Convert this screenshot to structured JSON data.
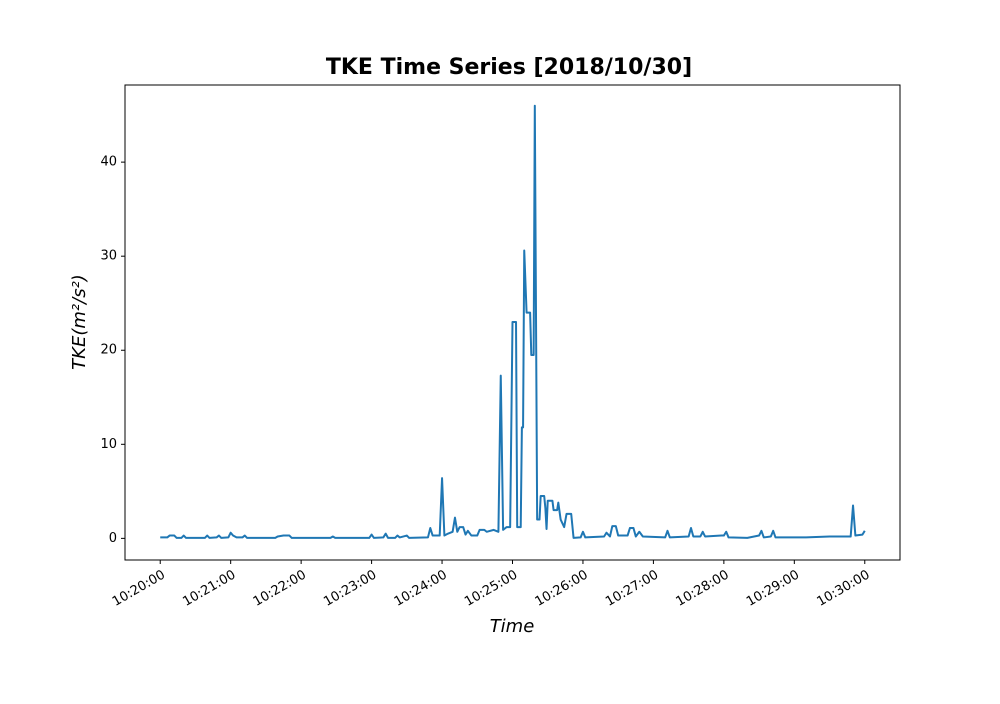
{
  "chart_data": {
    "type": "line",
    "title": "TKE Time Series [2018/10/30]",
    "xlabel": "Time",
    "ylabel": "TKE(m²/s²)",
    "ylabel_color": "#1f77b4",
    "color": "#1f77b4",
    "x": [
      "10:20:00",
      "10:20:06",
      "10:20:08",
      "10:20:12",
      "10:20:14",
      "10:20:18",
      "10:20:20",
      "10:20:22",
      "10:20:38",
      "10:20:40",
      "10:20:42",
      "10:20:48",
      "10:20:50",
      "10:20:52",
      "10:20:58",
      "10:21:00",
      "10:21:02",
      "10:21:05",
      "10:21:10",
      "10:21:12",
      "10:21:14",
      "10:21:38",
      "10:21:40",
      "10:21:45",
      "10:21:50",
      "10:21:52",
      "10:22:25",
      "10:22:27",
      "10:22:29",
      "10:22:58",
      "10:23:00",
      "10:23:02",
      "10:23:10",
      "10:23:12",
      "10:23:14",
      "10:23:20",
      "10:23:22",
      "10:23:24",
      "10:23:30",
      "10:23:32",
      "10:23:48",
      "10:23:50",
      "10:23:52",
      "10:23:58",
      "10:24:00",
      "10:24:02",
      "10:24:05",
      "10:24:09",
      "10:24:11",
      "10:24:13",
      "10:24:15",
      "10:24:18",
      "10:24:20",
      "10:24:22",
      "10:24:25",
      "10:24:30",
      "10:24:32",
      "10:24:36",
      "10:24:38",
      "10:24:44",
      "10:24:48",
      "10:24:50",
      "10:24:52",
      "10:24:55",
      "10:24:58",
      "10:25:00",
      "10:25:03",
      "10:25:04",
      "10:25:07",
      "10:25:08",
      "10:25:09",
      "10:25:10",
      "10:25:12",
      "10:25:15",
      "10:25:16",
      "10:25:18",
      "10:25:19",
      "10:25:21",
      "10:25:23",
      "10:25:24",
      "10:25:27",
      "10:25:28",
      "10:25:29",
      "10:25:30",
      "10:25:34",
      "10:25:35",
      "10:25:38",
      "10:25:39",
      "10:25:41",
      "10:25:44",
      "10:25:46",
      "10:25:50",
      "10:25:52",
      "10:25:58",
      "10:26:00",
      "10:26:02",
      "10:26:18",
      "10:26:20",
      "10:26:23",
      "10:26:25",
      "10:26:28",
      "10:26:30",
      "10:26:38",
      "10:26:40",
      "10:26:43",
      "10:26:45",
      "10:26:48",
      "10:26:51",
      "10:27:10",
      "10:27:12",
      "10:27:14",
      "10:27:30",
      "10:27:32",
      "10:27:34",
      "10:27:40",
      "10:27:42",
      "10:27:44",
      "10:27:58",
      "10:28:00",
      "10:28:02",
      "10:28:04",
      "10:28:20",
      "10:28:30",
      "10:28:32",
      "10:28:34",
      "10:28:40",
      "10:28:42",
      "10:28:44",
      "10:28:55",
      "10:29:10",
      "10:29:30",
      "10:29:48",
      "10:29:50",
      "10:29:52",
      "10:29:58",
      "10:30:00"
    ],
    "values": [
      0.1,
      0.1,
      0.3,
      0.3,
      0.05,
      0.05,
      0.3,
      0.05,
      0.05,
      0.3,
      0.05,
      0.1,
      0.3,
      0.05,
      0.1,
      0.6,
      0.3,
      0.1,
      0.1,
      0.3,
      0.05,
      0.05,
      0.2,
      0.3,
      0.3,
      0.05,
      0.05,
      0.2,
      0.05,
      0.05,
      0.4,
      0.05,
      0.1,
      0.5,
      0.05,
      0.05,
      0.3,
      0.1,
      0.3,
      0.05,
      0.1,
      1.1,
      0.3,
      0.3,
      6.4,
      0.3,
      0.5,
      0.7,
      2.2,
      0.7,
      1.2,
      1.2,
      0.4,
      0.8,
      0.3,
      0.3,
      0.9,
      0.9,
      0.7,
      0.9,
      0.7,
      17.3,
      0.9,
      1.2,
      1.2,
      23,
      23,
      1.2,
      1.2,
      11.8,
      11.8,
      30.6,
      24,
      24,
      19.5,
      19.5,
      46,
      2,
      2,
      4.5,
      4.5,
      3.2,
      1,
      4,
      4,
      3,
      3,
      3.8,
      2,
      1.2,
      2.6,
      2.6,
      0.05,
      0.1,
      0.7,
      0.1,
      0.2,
      0.6,
      0.2,
      1.3,
      1.3,
      0.3,
      0.3,
      1.1,
      1.1,
      0.2,
      0.7,
      0.2,
      0.1,
      0.8,
      0.1,
      0.2,
      1.1,
      0.2,
      0.2,
      0.7,
      0.2,
      0.3,
      0.3,
      0.7,
      0.1,
      0.05,
      0.3,
      0.8,
      0.1,
      0.2,
      0.8,
      0.1,
      0.1,
      0.1,
      0.2,
      0.2,
      3.5,
      0.3,
      0.4,
      0.8
    ],
    "xlim": [
      "10:19:30",
      "10:30:30"
    ],
    "xticks": [
      "10:20:00",
      "10:21:00",
      "10:22:00",
      "10:23:00",
      "10:24:00",
      "10:25:00",
      "10:26:00",
      "10:27:00",
      "10:28:00",
      "10:29:00",
      "10:30:00"
    ],
    "ylim": [
      -2.3,
      48.2
    ],
    "yticks": [
      0,
      10,
      20,
      30,
      40
    ]
  }
}
